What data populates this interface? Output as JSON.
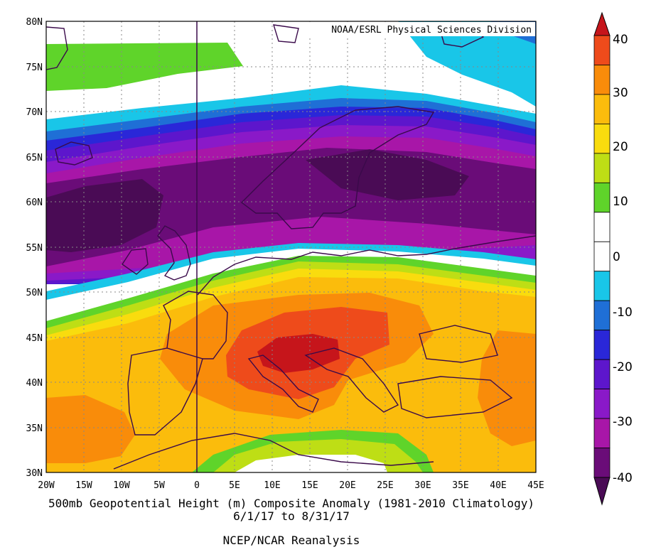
{
  "map": {
    "credit": "NOAA/ESRL Physical Sciences Division",
    "title": "500mb Geopotential Height (m) Composite Anomaly (1981-2010 Climatology)",
    "period": "6/1/17  to 8/31/17",
    "source": "NCEP/NCAR Reanalysis",
    "lat_labels": [
      "80N",
      "75N",
      "70N",
      "65N",
      "60N",
      "55N",
      "50N",
      "45N",
      "40N",
      "35N",
      "30N"
    ],
    "lon_labels": [
      "20W",
      "15W",
      "10W",
      "5W",
      "0",
      "5E",
      "10E",
      "15E",
      "20E",
      "25E",
      "30E",
      "35E",
      "40E",
      "45E"
    ],
    "lon_range": [
      -20,
      45
    ],
    "lat_range": [
      30,
      80
    ],
    "gridlines": "dotted",
    "colorbar": {
      "labels": [
        "40",
        "30",
        "20",
        "10",
        "0",
        "-10",
        "-20",
        "-30",
        "-40"
      ],
      "colors": [
        "#c6151b",
        "#ee4b1b",
        "#f98c0a",
        "#fbbc0c",
        "#f9dc0e",
        "#bede15",
        "#5fd42a",
        "#ffffff",
        "#ffffff",
        "#19c6e8",
        "#1f6fd6",
        "#2a27d8",
        "#5d16cc",
        "#8a19c8",
        "#a816a8",
        "#6a0c78",
        "#4a0b55"
      ]
    }
  }
}
